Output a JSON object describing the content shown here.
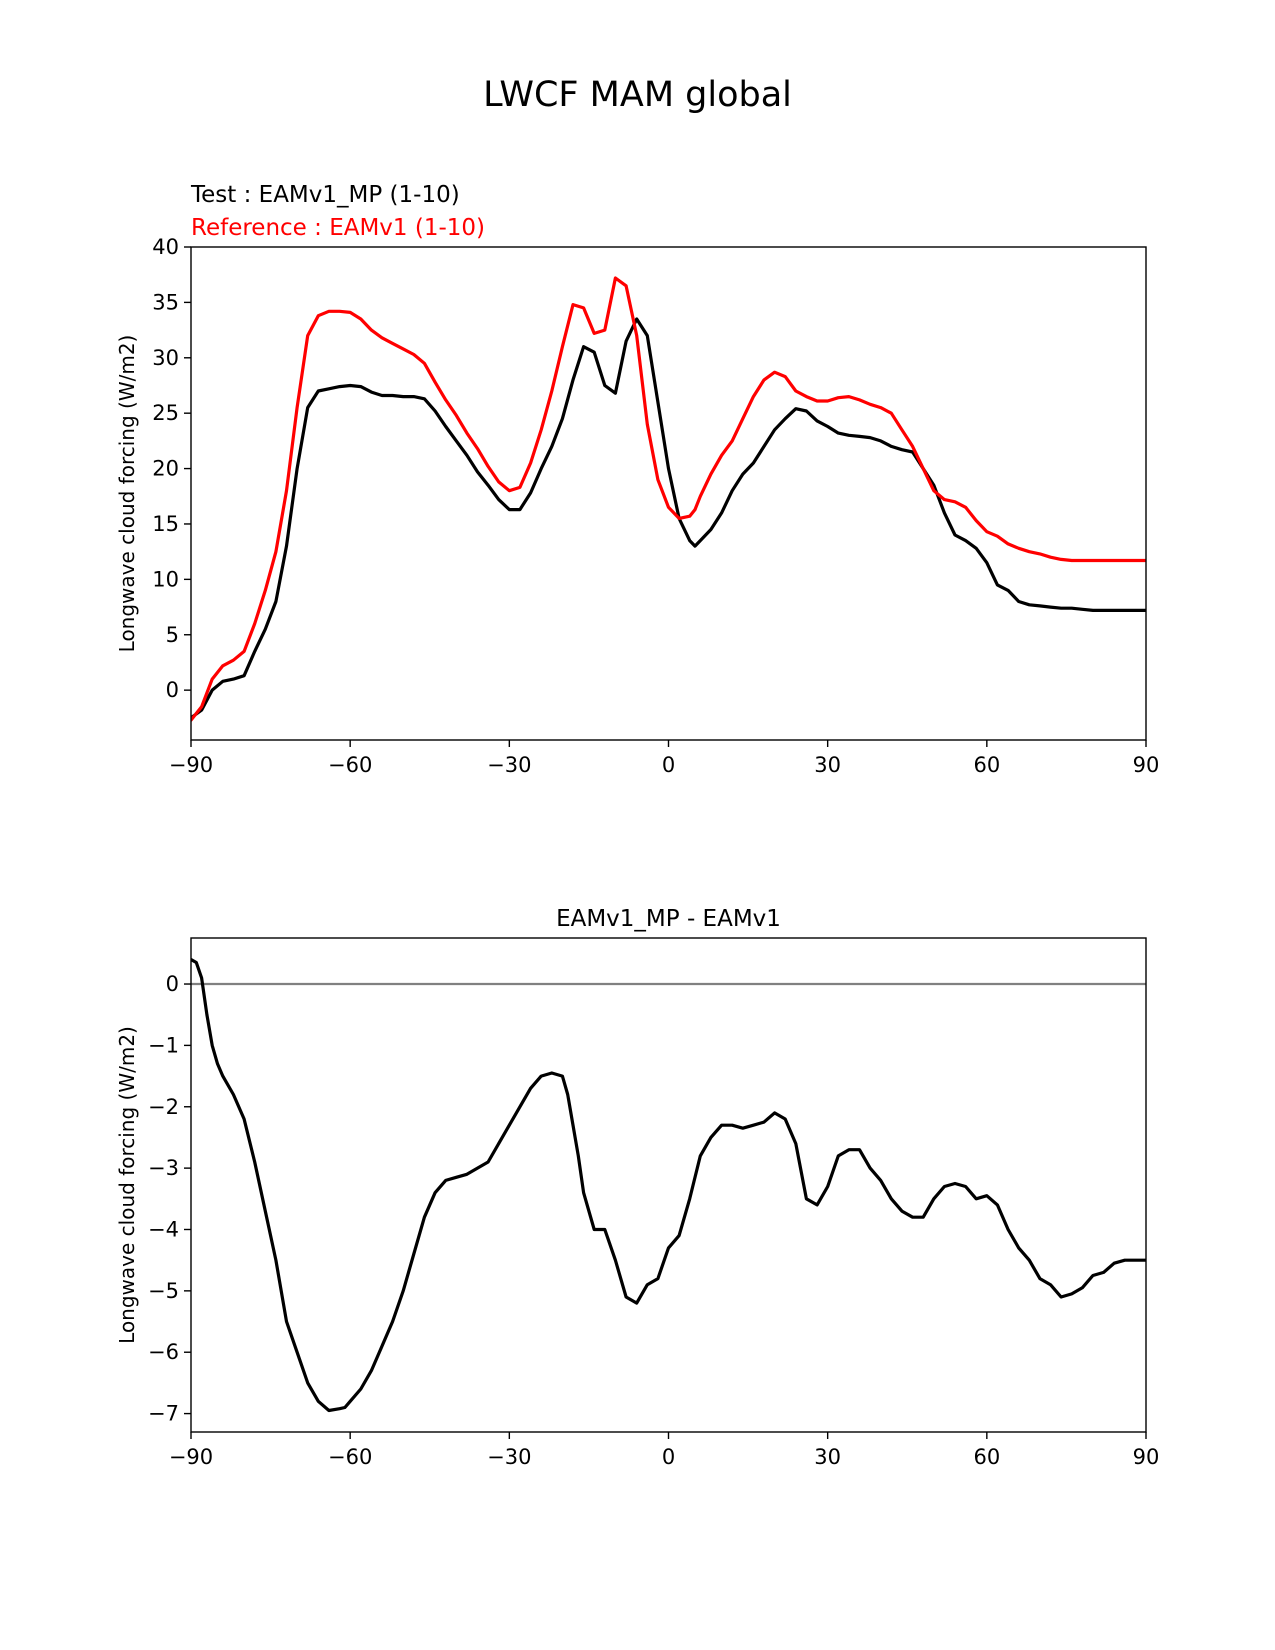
{
  "figure": {
    "title": "LWCF MAM global"
  },
  "chart_data": [
    {
      "type": "line",
      "title": "",
      "annotations": [
        {
          "text": "Test : EAMv1_MP (1-10)",
          "color": "#000000"
        },
        {
          "text": "Reference : EAMv1 (1-10)",
          "color": "#ff0000"
        }
      ],
      "xlabel": "",
      "ylabel": "Longwave cloud forcing (W/m2)",
      "xlim": [
        -90,
        90
      ],
      "ylim": [
        -4.5,
        40
      ],
      "xticks": [
        -90,
        -60,
        -30,
        0,
        30,
        60,
        90
      ],
      "xtick_labels": [
        "−90",
        "−60",
        "−30",
        "0",
        "30",
        "60",
        "90"
      ],
      "yticks": [
        0,
        5,
        10,
        15,
        20,
        25,
        30,
        35,
        40
      ],
      "ytick_labels": [
        "0",
        "5",
        "10",
        "15",
        "20",
        "25",
        "30",
        "35",
        "40"
      ],
      "grid": false,
      "series": [
        {
          "name": "Test : EAMv1_MP (1-10)",
          "color": "#000000",
          "x": [
            -90,
            -88,
            -86,
            -84,
            -82,
            -80,
            -78,
            -76,
            -74,
            -72,
            -70,
            -68,
            -66,
            -64,
            -62,
            -60,
            -58,
            -56,
            -54,
            -52,
            -50,
            -48,
            -46,
            -44,
            -42,
            -40,
            -38,
            -36,
            -34,
            -32,
            -30,
            -28,
            -26,
            -24,
            -22,
            -20,
            -18,
            -16,
            -14,
            -12,
            -10,
            -8,
            -6,
            -4,
            -2,
            0,
            2,
            4,
            5,
            6,
            8,
            10,
            12,
            14,
            16,
            18,
            20,
            22,
            24,
            26,
            28,
            30,
            32,
            34,
            36,
            38,
            40,
            42,
            44,
            46,
            48,
            50,
            52,
            54,
            56,
            58,
            60,
            62,
            64,
            66,
            68,
            70,
            72,
            74,
            76,
            78,
            80,
            82,
            84,
            86,
            88,
            90
          ],
          "values": [
            -2.5,
            -1.8,
            0.0,
            0.8,
            1.0,
            1.3,
            3.5,
            5.5,
            8.0,
            13.0,
            20.0,
            25.5,
            27.0,
            27.2,
            27.4,
            27.5,
            27.4,
            26.9,
            26.6,
            26.6,
            26.5,
            26.5,
            26.3,
            25.2,
            23.8,
            22.5,
            21.2,
            19.7,
            18.5,
            17.2,
            16.3,
            16.3,
            17.8,
            20.0,
            22.0,
            24.5,
            28.0,
            31.0,
            30.5,
            27.5,
            26.8,
            31.5,
            33.5,
            32.0,
            26.0,
            20.0,
            15.5,
            13.5,
            13.0,
            13.5,
            14.5,
            16.0,
            18.0,
            19.5,
            20.5,
            22.0,
            23.5,
            24.5,
            25.4,
            25.2,
            24.3,
            23.8,
            23.2,
            23.0,
            22.9,
            22.8,
            22.5,
            22.0,
            21.7,
            21.5,
            20.0,
            18.5,
            16.0,
            14.0,
            13.5,
            12.8,
            11.5,
            9.5,
            9.0,
            8.0,
            7.7,
            7.6,
            7.5,
            7.4,
            7.4,
            7.3,
            7.2,
            7.2,
            7.2,
            7.2,
            7.2,
            7.2
          ]
        },
        {
          "name": "Reference : EAMv1 (1-10)",
          "color": "#ff0000",
          "x": [
            -90,
            -88,
            -86,
            -84,
            -82,
            -80,
            -78,
            -76,
            -74,
            -72,
            -70,
            -68,
            -66,
            -64,
            -62,
            -60,
            -58,
            -56,
            -54,
            -52,
            -50,
            -48,
            -46,
            -44,
            -42,
            -40,
            -38,
            -36,
            -34,
            -32,
            -30,
            -28,
            -26,
            -24,
            -22,
            -20,
            -18,
            -16,
            -14,
            -12,
            -10,
            -8,
            -6,
            -4,
            -2,
            0,
            2,
            4,
            5,
            6,
            8,
            10,
            12,
            14,
            16,
            18,
            20,
            22,
            24,
            26,
            28,
            30,
            32,
            34,
            36,
            38,
            40,
            42,
            44,
            46,
            48,
            50,
            52,
            54,
            56,
            58,
            60,
            62,
            64,
            66,
            68,
            70,
            72,
            74,
            76,
            78,
            80,
            82,
            84,
            86,
            88,
            90
          ],
          "values": [
            -2.7,
            -1.5,
            1.0,
            2.2,
            2.7,
            3.5,
            6.0,
            9.0,
            12.5,
            18.0,
            25.5,
            32.0,
            33.8,
            34.2,
            34.2,
            34.1,
            33.5,
            32.5,
            31.8,
            31.3,
            30.8,
            30.3,
            29.5,
            27.8,
            26.2,
            24.8,
            23.2,
            21.8,
            20.2,
            18.8,
            18.0,
            18.3,
            20.5,
            23.5,
            27.0,
            31.0,
            34.8,
            34.5,
            32.2,
            32.5,
            37.2,
            36.5,
            32.0,
            24.0,
            19.0,
            16.5,
            15.5,
            15.7,
            16.3,
            17.5,
            19.5,
            21.2,
            22.5,
            24.5,
            26.5,
            28.0,
            28.7,
            28.3,
            27.0,
            26.5,
            26.1,
            26.1,
            26.4,
            26.5,
            26.2,
            25.8,
            25.5,
            25.0,
            23.5,
            22.0,
            20.0,
            18.0,
            17.2,
            17.0,
            16.5,
            15.3,
            14.3,
            13.9,
            13.2,
            12.8,
            12.5,
            12.3,
            12.0,
            11.8,
            11.7,
            11.7,
            11.7,
            11.7,
            11.7,
            11.7,
            11.7,
            11.7
          ]
        }
      ]
    },
    {
      "type": "line",
      "title": "EAMv1_MP - EAMv1",
      "xlabel": "",
      "ylabel": "Longwave cloud forcing (W/m2)",
      "xlim": [
        -90,
        90
      ],
      "ylim": [
        -7.3,
        0.75
      ],
      "xticks": [
        -90,
        -60,
        -30,
        0,
        30,
        60,
        90
      ],
      "xtick_labels": [
        "−90",
        "−60",
        "−30",
        "0",
        "30",
        "60",
        "90"
      ],
      "yticks": [
        0,
        -1,
        -2,
        -3,
        -4,
        -5,
        -6,
        -7
      ],
      "ytick_labels": [
        "0",
        "−1",
        "−2",
        "−3",
        "−4",
        "−5",
        "−6",
        "−7"
      ],
      "grid": false,
      "zero_line": {
        "value": 0,
        "color": "#808080"
      },
      "series": [
        {
          "name": "EAMv1_MP - EAMv1",
          "color": "#000000",
          "x": [
            -90,
            -89,
            -88,
            -87,
            -86,
            -85,
            -84,
            -82,
            -80,
            -78,
            -76,
            -74,
            -72,
            -70,
            -68,
            -66,
            -64,
            -62,
            -61,
            -60,
            -58,
            -56,
            -54,
            -52,
            -50,
            -48,
            -46,
            -44,
            -42,
            -40,
            -38,
            -36,
            -34,
            -32,
            -30,
            -28,
            -26,
            -24,
            -22,
            -20,
            -19,
            -18,
            -17,
            -16,
            -14,
            -12,
            -10,
            -8,
            -6,
            -4,
            -2,
            0,
            2,
            4,
            6,
            8,
            10,
            12,
            14,
            16,
            18,
            20,
            22,
            24,
            26,
            28,
            30,
            32,
            34,
            36,
            38,
            40,
            42,
            44,
            46,
            48,
            50,
            52,
            54,
            56,
            58,
            60,
            62,
            64,
            66,
            68,
            70,
            72,
            74,
            76,
            78,
            80,
            82,
            84,
            86,
            88,
            90
          ],
          "values": [
            0.4,
            0.35,
            0.1,
            -0.5,
            -1.0,
            -1.3,
            -1.5,
            -1.8,
            -2.2,
            -2.9,
            -3.7,
            -4.5,
            -5.5,
            -6.0,
            -6.5,
            -6.8,
            -6.95,
            -6.92,
            -6.9,
            -6.8,
            -6.6,
            -6.3,
            -5.9,
            -5.5,
            -5.0,
            -4.4,
            -3.8,
            -3.4,
            -3.2,
            -3.15,
            -3.1,
            -3.0,
            -2.9,
            -2.6,
            -2.3,
            -2.0,
            -1.7,
            -1.5,
            -1.45,
            -1.5,
            -1.8,
            -2.3,
            -2.8,
            -3.4,
            -4.0,
            -4.0,
            -4.5,
            -5.1,
            -5.2,
            -4.9,
            -4.8,
            -4.3,
            -4.1,
            -3.5,
            -2.8,
            -2.5,
            -2.3,
            -2.3,
            -2.35,
            -2.3,
            -2.25,
            -2.1,
            -2.2,
            -2.6,
            -3.5,
            -3.6,
            -3.3,
            -2.8,
            -2.7,
            -2.7,
            -3.0,
            -3.2,
            -3.5,
            -3.7,
            -3.8,
            -3.8,
            -3.5,
            -3.3,
            -3.25,
            -3.3,
            -3.5,
            -3.45,
            -3.6,
            -4.0,
            -4.3,
            -4.5,
            -4.8,
            -4.9,
            -5.1,
            -5.05,
            -4.95,
            -4.75,
            -4.7,
            -4.55,
            -4.5,
            -4.5,
            -4.5
          ]
        }
      ]
    }
  ]
}
